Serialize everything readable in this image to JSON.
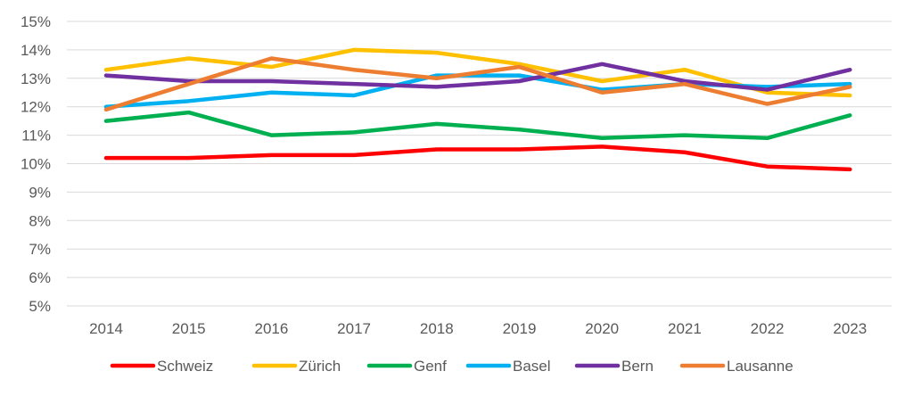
{
  "chart_data": {
    "type": "line",
    "title": "",
    "xlabel": "",
    "ylabel": "",
    "categories": [
      "2014",
      "2015",
      "2016",
      "2017",
      "2018",
      "2019",
      "2020",
      "2021",
      "2022",
      "2023"
    ],
    "ylim": [
      5,
      15
    ],
    "yticks": [
      "5%",
      "6%",
      "7%",
      "8%",
      "9%",
      "10%",
      "11%",
      "12%",
      "13%",
      "14%",
      "15%"
    ],
    "grid": true,
    "legend_position": "bottom",
    "series": [
      {
        "name": "Schweiz",
        "color": "#ff0000",
        "values": [
          10.2,
          10.2,
          10.3,
          10.3,
          10.5,
          10.5,
          10.6,
          10.4,
          9.9,
          9.8
        ]
      },
      {
        "name": "Zürich",
        "color": "#ffc000",
        "values": [
          13.3,
          13.7,
          13.4,
          14.0,
          13.9,
          13.5,
          12.9,
          13.3,
          12.5,
          12.4
        ]
      },
      {
        "name": "Genf",
        "color": "#00b050",
        "values": [
          11.5,
          11.8,
          11.0,
          11.1,
          11.4,
          11.2,
          10.9,
          11.0,
          10.9,
          11.7
        ]
      },
      {
        "name": "Basel",
        "color": "#00b0f0",
        "values": [
          12.0,
          12.2,
          12.5,
          12.4,
          13.1,
          13.1,
          12.6,
          12.8,
          12.7,
          12.8
        ]
      },
      {
        "name": "Bern",
        "color": "#7030a0",
        "values": [
          13.1,
          12.9,
          12.9,
          12.8,
          12.7,
          12.9,
          13.5,
          12.9,
          12.6,
          13.3
        ]
      },
      {
        "name": "Lausanne",
        "color": "#ed7d31",
        "values": [
          11.9,
          12.8,
          13.7,
          13.3,
          13.0,
          13.4,
          12.5,
          12.8,
          12.1,
          12.7
        ]
      }
    ]
  }
}
